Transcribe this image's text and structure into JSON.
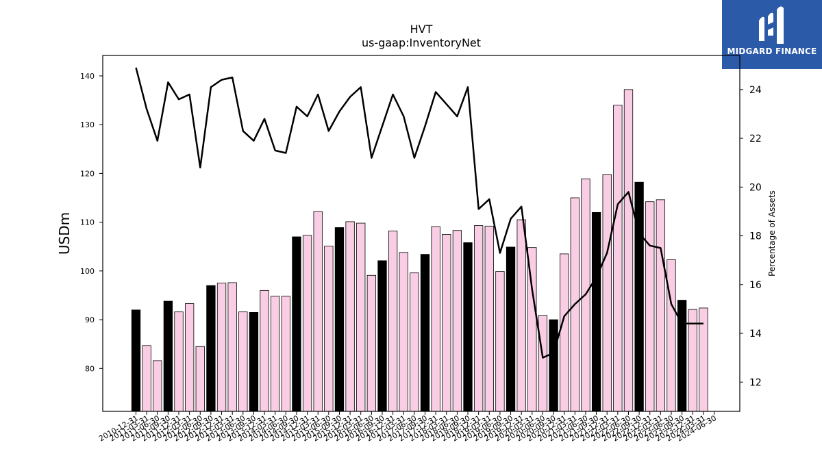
{
  "brand": {
    "name": "MIDGARD FINANCE",
    "logo_icon": "midgard-logo-icon",
    "bg": "#2b5aa8"
  },
  "chart_data": {
    "type": "bar",
    "title": "HVT",
    "subtitle": "us-gaap:InventoryNet",
    "ylabel": "USDm",
    "y2label": "Percentage of Assets",
    "ylim": [
      71.2,
      144.2
    ],
    "y2lim": [
      10.8,
      25.4
    ],
    "yticks": [
      80,
      90,
      100,
      110,
      120,
      130,
      140
    ],
    "y2ticks": [
      12,
      14,
      16,
      18,
      20,
      22,
      24
    ],
    "grid": false,
    "colors": {
      "annual_bar": "#000000",
      "quarter_bar": "#f9cde3",
      "line": "#000000"
    },
    "categories": [
      "2010-12-31",
      "2011-03-31",
      "2011-06-30",
      "2011-09-30",
      "2011-12-31",
      "2012-03-31",
      "2012-06-30",
      "2012-09-30",
      "2012-12-31",
      "2013-03-31",
      "2013-06-30",
      "2013-09-30",
      "2013-12-31",
      "2014-03-31",
      "2014-06-30",
      "2014-09-30",
      "2014-12-31",
      "2015-03-31",
      "2015-06-30",
      "2015-09-30",
      "2015-12-31",
      "2016-03-31",
      "2016-06-30",
      "2016-09-30",
      "2016-12-31",
      "2017-03-31",
      "2017-06-30",
      "2017-09-30",
      "2017-12-31",
      "2018-03-31",
      "2018-06-30",
      "2018-09-30",
      "2018-12-31",
      "2019-03-31",
      "2019-06-30",
      "2019-09-30",
      "2019-12-31",
      "2020-03-31",
      "2020-06-30",
      "2020-09-30",
      "2020-12-31",
      "2021-03-31",
      "2021-06-30",
      "2021-09-30",
      "2021-12-31",
      "2022-03-31",
      "2022-06-30",
      "2022-09-30",
      "2022-12-31",
      "2023-03-31",
      "2023-06-30",
      "2023-09-30",
      "2023-12-31",
      "2024-03-31",
      "2024-06-30"
    ],
    "series": [
      {
        "kind": "bar",
        "values": [
          92.0,
          84.7,
          81.6,
          93.8,
          91.6,
          93.3,
          84.5,
          97.0,
          97.5,
          97.6,
          91.6,
          91.5,
          96.0,
          94.8,
          94.8,
          107.0,
          107.3,
          112.2,
          105.1,
          108.9,
          110.1,
          109.8,
          99.1,
          102.1,
          108.2,
          103.8,
          99.6,
          103.4,
          109.1,
          107.5,
          108.3,
          105.8,
          109.3,
          109.2,
          99.9,
          104.9,
          110.5,
          104.8,
          90.9,
          90.0,
          103.5,
          115.0,
          118.9,
          112.0,
          119.8,
          134.0,
          137.2,
          118.2,
          114.2,
          114.6,
          102.3,
          94.0,
          92.1,
          92.4,
          null
        ],
        "annual_flags": [
          1,
          0,
          0,
          1,
          0,
          0,
          0,
          1,
          0,
          0,
          0,
          1,
          0,
          0,
          0,
          1,
          0,
          0,
          0,
          1,
          0,
          0,
          0,
          1,
          0,
          0,
          0,
          1,
          0,
          0,
          0,
          1,
          0,
          0,
          0,
          1,
          0,
          0,
          0,
          1,
          0,
          0,
          0,
          1,
          0,
          0,
          0,
          1,
          0,
          0,
          0,
          1,
          0,
          0,
          0
        ]
      },
      {
        "kind": "line",
        "axis": "right",
        "values": [
          24.9,
          23.2,
          21.9,
          24.3,
          23.6,
          23.8,
          20.8,
          24.1,
          24.4,
          24.5,
          22.3,
          21.9,
          22.8,
          21.5,
          21.4,
          23.3,
          22.9,
          23.8,
          22.3,
          23.1,
          23.7,
          24.1,
          21.2,
          22.5,
          23.8,
          22.9,
          21.2,
          22.5,
          23.9,
          23.4,
          22.9,
          24.1,
          19.1,
          19.5,
          17.3,
          18.7,
          19.2,
          15.8,
          13.0,
          13.2,
          14.7,
          15.2,
          15.6,
          16.3,
          17.3,
          19.3,
          19.8,
          18.1,
          17.6,
          17.5,
          15.2,
          14.4,
          14.4,
          14.4,
          null
        ]
      }
    ]
  }
}
